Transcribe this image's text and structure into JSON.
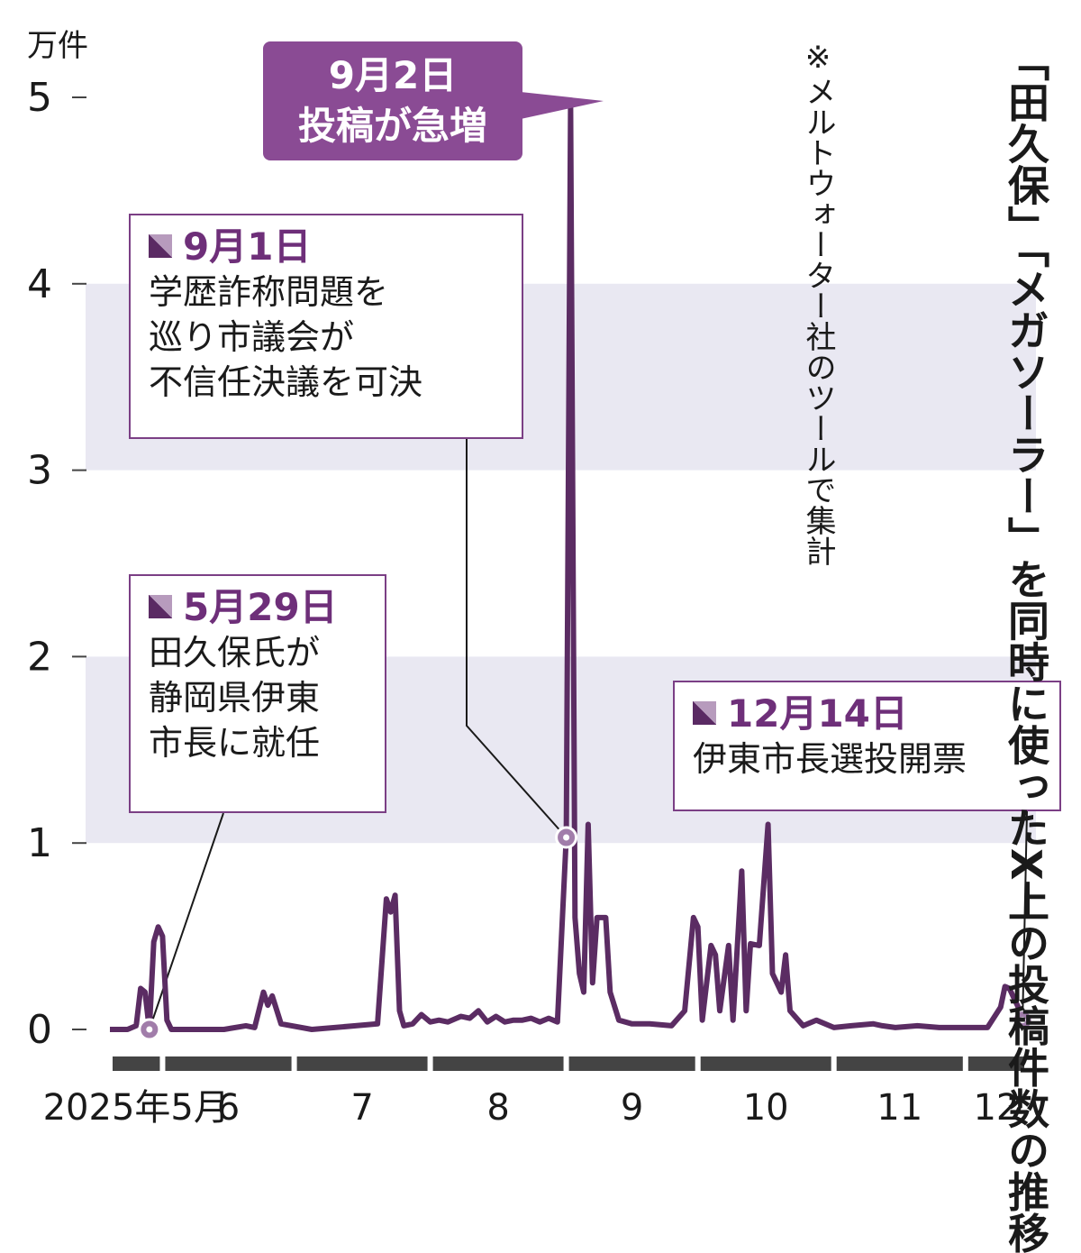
{
  "chart_data": {
    "type": "line",
    "title": "「田久保」「メガソーラー」を同時に使ったX上の投稿件数の推移",
    "note": "※メルトウォーター社のツールで集計",
    "ylabel": "万件",
    "ylim": [
      0,
      5
    ],
    "yticks": [
      "0",
      "1",
      "2",
      "3",
      "4",
      "5"
    ],
    "month_labels": [
      "2025年5月",
      "6",
      "7",
      "8",
      "9",
      "10",
      "11",
      "12"
    ],
    "month_starts": [
      "2025-05-20",
      "2025-06-01",
      "2025-07-01",
      "2025-08-01",
      "2025-09-01",
      "2025-10-01",
      "2025-11-01",
      "2025-12-01"
    ],
    "x_end": "2025-12-15",
    "series": [
      {
        "values": [
          [
            "2025-05-20",
            0
          ],
          [
            "2025-05-24",
            0
          ],
          [
            "2025-05-26",
            0.02
          ],
          [
            "2025-05-27",
            0.22
          ],
          [
            "2025-05-28",
            0.2
          ],
          [
            "2025-05-29",
            0
          ],
          [
            "2025-05-30",
            0.47
          ],
          [
            "2025-05-31",
            0.55
          ],
          [
            "2025-06-01",
            0.5
          ],
          [
            "2025-06-02",
            0.05
          ],
          [
            "2025-06-03",
            0
          ],
          [
            "2025-06-15",
            0
          ],
          [
            "2025-06-20",
            0.02
          ],
          [
            "2025-06-22",
            0.01
          ],
          [
            "2025-06-24",
            0.2
          ],
          [
            "2025-06-25",
            0.13
          ],
          [
            "2025-06-26",
            0.18
          ],
          [
            "2025-06-28",
            0.03
          ],
          [
            "2025-07-05",
            0
          ],
          [
            "2025-07-15",
            0.02
          ],
          [
            "2025-07-20",
            0.03
          ],
          [
            "2025-07-22",
            0.7
          ],
          [
            "2025-07-23",
            0.63
          ],
          [
            "2025-07-24",
            0.72
          ],
          [
            "2025-07-25",
            0.1
          ],
          [
            "2025-07-26",
            0.02
          ],
          [
            "2025-07-28",
            0.03
          ],
          [
            "2025-07-30",
            0.08
          ],
          [
            "2025-08-01",
            0.04
          ],
          [
            "2025-08-03",
            0.05
          ],
          [
            "2025-08-05",
            0.04
          ],
          [
            "2025-08-08",
            0.07
          ],
          [
            "2025-08-10",
            0.06
          ],
          [
            "2025-08-12",
            0.1
          ],
          [
            "2025-08-14",
            0.04
          ],
          [
            "2025-08-16",
            0.07
          ],
          [
            "2025-08-18",
            0.04
          ],
          [
            "2025-08-20",
            0.05
          ],
          [
            "2025-08-22",
            0.05
          ],
          [
            "2025-08-24",
            0.06
          ],
          [
            "2025-08-26",
            0.04
          ],
          [
            "2025-08-28",
            0.06
          ],
          [
            "2025-08-30",
            0.04
          ],
          [
            "2025-09-01",
            1.03
          ],
          [
            "2025-09-02",
            4.95
          ],
          [
            "2025-09-03",
            0.6
          ],
          [
            "2025-09-04",
            0.3
          ],
          [
            "2025-09-05",
            0.2
          ],
          [
            "2025-09-06",
            1.1
          ],
          [
            "2025-09-07",
            0.25
          ],
          [
            "2025-09-08",
            0.6
          ],
          [
            "2025-09-10",
            0.6
          ],
          [
            "2025-09-11",
            0.2
          ],
          [
            "2025-09-13",
            0.05
          ],
          [
            "2025-09-16",
            0.03
          ],
          [
            "2025-09-20",
            0.03
          ],
          [
            "2025-09-25",
            0.02
          ],
          [
            "2025-09-28",
            0.1
          ],
          [
            "2025-09-30",
            0.6
          ],
          [
            "2025-10-01",
            0.55
          ],
          [
            "2025-10-02",
            0.05
          ],
          [
            "2025-10-04",
            0.45
          ],
          [
            "2025-10-05",
            0.4
          ],
          [
            "2025-10-06",
            0.1
          ],
          [
            "2025-10-08",
            0.45
          ],
          [
            "2025-10-09",
            0.05
          ],
          [
            "2025-10-11",
            0.85
          ],
          [
            "2025-10-12",
            0.1
          ],
          [
            "2025-10-13",
            0.46
          ],
          [
            "2025-10-15",
            0.45
          ],
          [
            "2025-10-17",
            1.1
          ],
          [
            "2025-10-18",
            0.3
          ],
          [
            "2025-10-20",
            0.2
          ],
          [
            "2025-10-21",
            0.4
          ],
          [
            "2025-10-22",
            0.1
          ],
          [
            "2025-10-25",
            0.02
          ],
          [
            "2025-10-28",
            0.05
          ],
          [
            "2025-11-01",
            0.01
          ],
          [
            "2025-11-05",
            0.02
          ],
          [
            "2025-11-10",
            0.03
          ],
          [
            "2025-11-12",
            0.02
          ],
          [
            "2025-11-15",
            0.01
          ],
          [
            "2025-11-20",
            0.02
          ],
          [
            "2025-11-25",
            0.01
          ],
          [
            "2025-12-01",
            0.01
          ],
          [
            "2025-12-06",
            0.01
          ],
          [
            "2025-12-09",
            0.12
          ],
          [
            "2025-12-10",
            0.23
          ],
          [
            "2025-12-11",
            0.22
          ],
          [
            "2025-12-13",
            0.12
          ],
          [
            "2025-12-14",
            0.05
          ]
        ]
      }
    ],
    "annotations": [
      {
        "date": "2025-09-02",
        "label": "9月2日",
        "text": "投稿が急増"
      },
      {
        "date": "2025-09-01",
        "label": "9月1日",
        "text": "学歴詐称問題を\n巡り市議会が\n不信任決議を可決"
      },
      {
        "date": "2025-05-29",
        "label": "5月29日",
        "text": "田久保氏が\n静岡県伊東\n市長に就任"
      },
      {
        "date": "2025-12-14",
        "label": "12月14日",
        "text": "伊東市長選投開票"
      }
    ],
    "colors": {
      "line": "#5b2c63",
      "band": "#e9e8f2",
      "marker": "#a17daa",
      "callout_border": "#7b3f85",
      "callout_date": "#6e2f79",
      "bubble": "#8a4b94",
      "axis_bar": "#444444"
    }
  }
}
